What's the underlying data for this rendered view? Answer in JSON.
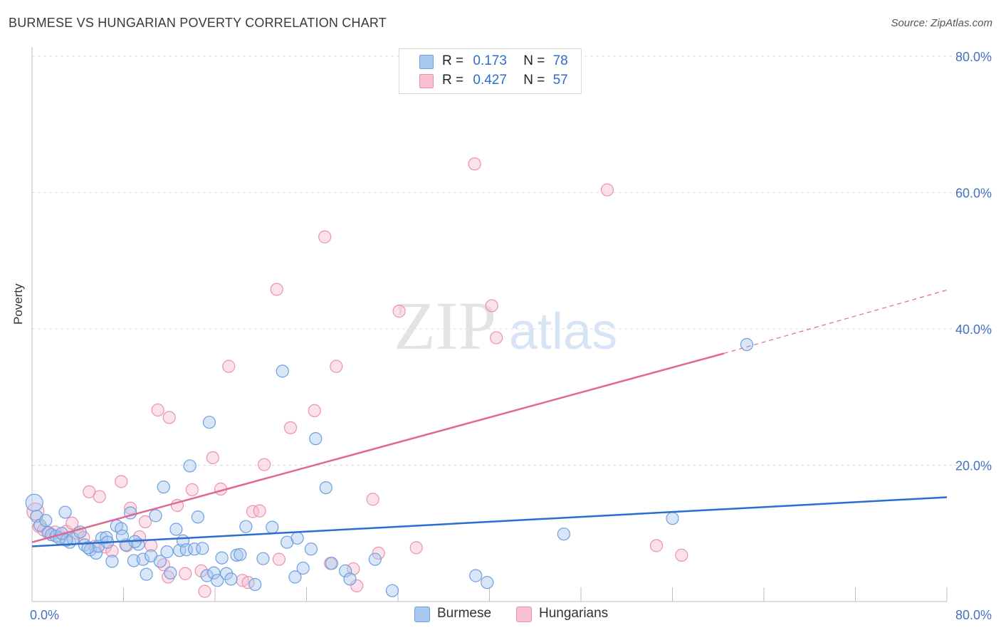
{
  "title": "BURMESE VS HUNGARIAN POVERTY CORRELATION CHART",
  "source": "Source: ZipAtlas.com",
  "watermark": {
    "zip": "ZIP",
    "atlas": "atlas"
  },
  "legend": {
    "rows": [
      {
        "r_label": "R =",
        "r_value": "0.173",
        "n_label": "N =",
        "n_value": "78"
      },
      {
        "r_label": "R =",
        "r_value": "0.427",
        "n_label": "N =",
        "n_value": "57"
      }
    ]
  },
  "bottom_legend": {
    "burmese": "Burmese",
    "hungarians": "Hungarians"
  },
  "colors": {
    "burmese_fill": "#a9c8f0",
    "burmese_stroke": "#6d9fe0",
    "burmese_line": "#2a6fcf",
    "hungarians_fill": "#f7bfd0",
    "hungarians_stroke": "#ec91ad",
    "hungarians_line": "#e0678f",
    "axis_text": "#4472c4"
  },
  "chart_data": {
    "type": "scatter",
    "title": "BURMESE VS HUNGARIAN POVERTY CORRELATION CHART",
    "xlabel": "",
    "ylabel": "Poverty",
    "xlim": [
      0,
      80
    ],
    "ylim": [
      0,
      80
    ],
    "x_tick_labels": [
      "0.0%",
      "80.0%"
    ],
    "y_tick_labels": [
      "20.0%",
      "40.0%",
      "60.0%",
      "80.0%"
    ],
    "y_ticks": [
      20,
      40,
      60,
      80
    ],
    "series": [
      {
        "name": "Burmese",
        "r": 0.173,
        "n": 78,
        "trend": {
          "x0": 0,
          "y0": 8.1,
          "x1": 80,
          "y1": 15.3
        },
        "points": [
          [
            0.2,
            14.5
          ],
          [
            0.4,
            12.5
          ],
          [
            0.7,
            11.2
          ],
          [
            1.2,
            11.9
          ],
          [
            1.4,
            10.1
          ],
          [
            1.7,
            9.8
          ],
          [
            2.1,
            9.6
          ],
          [
            2.4,
            9.3
          ],
          [
            2.9,
            13.1
          ],
          [
            3.3,
            8.7
          ],
          [
            3.6,
            9.2
          ],
          [
            4.2,
            10.2
          ],
          [
            4.6,
            8.3
          ],
          [
            5.1,
            7.6
          ],
          [
            5.6,
            7.1
          ],
          [
            6.1,
            9.3
          ],
          [
            6.5,
            9.4
          ],
          [
            7.0,
            5.9
          ],
          [
            7.4,
            11.1
          ],
          [
            7.8,
            10.7
          ],
          [
            8.2,
            8.3
          ],
          [
            8.6,
            13.0
          ],
          [
            8.9,
            6.0
          ],
          [
            9.3,
            8.4
          ],
          [
            9.7,
            6.2
          ],
          [
            10.0,
            4.0
          ],
          [
            10.4,
            6.7
          ],
          [
            10.8,
            12.6
          ],
          [
            11.2,
            5.9
          ],
          [
            11.5,
            16.8
          ],
          [
            11.8,
            7.3
          ],
          [
            12.1,
            4.2
          ],
          [
            12.6,
            10.6
          ],
          [
            12.9,
            7.5
          ],
          [
            13.2,
            8.9
          ],
          [
            13.5,
            7.6
          ],
          [
            13.8,
            19.9
          ],
          [
            14.2,
            7.7
          ],
          [
            14.5,
            12.4
          ],
          [
            14.9,
            7.8
          ],
          [
            15.3,
            3.8
          ],
          [
            15.5,
            26.3
          ],
          [
            15.9,
            4.2
          ],
          [
            16.2,
            3.1
          ],
          [
            16.6,
            6.4
          ],
          [
            17.0,
            4.1
          ],
          [
            17.4,
            3.3
          ],
          [
            17.9,
            6.8
          ],
          [
            18.2,
            6.9
          ],
          [
            18.7,
            11.0
          ],
          [
            19.5,
            2.5
          ],
          [
            20.2,
            6.3
          ],
          [
            21.0,
            10.9
          ],
          [
            21.9,
            33.8
          ],
          [
            22.3,
            8.7
          ],
          [
            23.0,
            3.6
          ],
          [
            23.2,
            9.3
          ],
          [
            23.7,
            4.9
          ],
          [
            24.4,
            7.7
          ],
          [
            24.8,
            23.9
          ],
          [
            25.7,
            16.7
          ],
          [
            26.2,
            5.6
          ],
          [
            27.4,
            4.5
          ],
          [
            27.8,
            3.3
          ],
          [
            30.0,
            6.2
          ],
          [
            31.5,
            1.6
          ],
          [
            38.8,
            3.8
          ],
          [
            39.8,
            2.8
          ],
          [
            46.5,
            9.9
          ],
          [
            56.0,
            12.2
          ],
          [
            62.5,
            37.7
          ],
          [
            3.0,
            9.0
          ],
          [
            5.8,
            8.1
          ],
          [
            7.9,
            9.6
          ],
          [
            9.0,
            8.8
          ],
          [
            2.6,
            10.0
          ],
          [
            4.9,
            7.9
          ],
          [
            6.6,
            8.7
          ]
        ]
      },
      {
        "name": "Hungarians",
        "r": 0.427,
        "n": 57,
        "trend": {
          "x0": 0,
          "y0": 8.7,
          "x1": 60.5,
          "y1": 36.4,
          "dash_x1": 80,
          "dash_y1": 45.7
        },
        "points": [
          [
            0.3,
            13.2
          ],
          [
            0.6,
            11.0
          ],
          [
            1.0,
            10.5
          ],
          [
            1.5,
            10.1
          ],
          [
            2.0,
            10.2
          ],
          [
            2.5,
            9.5
          ],
          [
            3.0,
            10.3
          ],
          [
            3.5,
            11.5
          ],
          [
            4.0,
            10.0
          ],
          [
            4.5,
            9.4
          ],
          [
            5.0,
            16.1
          ],
          [
            5.5,
            8.1
          ],
          [
            5.9,
            15.4
          ],
          [
            6.4,
            8.0
          ],
          [
            7.0,
            7.4
          ],
          [
            7.8,
            17.6
          ],
          [
            8.6,
            13.7
          ],
          [
            8.3,
            8.2
          ],
          [
            9.4,
            9.5
          ],
          [
            9.9,
            11.7
          ],
          [
            10.4,
            8.2
          ],
          [
            11.0,
            28.1
          ],
          [
            11.5,
            5.4
          ],
          [
            11.9,
            3.6
          ],
          [
            12.0,
            27.0
          ],
          [
            12.7,
            14.1
          ],
          [
            13.4,
            4.1
          ],
          [
            14.0,
            16.4
          ],
          [
            14.8,
            4.5
          ],
          [
            15.1,
            1.5
          ],
          [
            15.8,
            21.1
          ],
          [
            16.5,
            16.5
          ],
          [
            17.2,
            34.5
          ],
          [
            18.4,
            3.1
          ],
          [
            18.9,
            2.8
          ],
          [
            19.3,
            13.2
          ],
          [
            19.9,
            13.3
          ],
          [
            20.3,
            20.1
          ],
          [
            21.4,
            45.8
          ],
          [
            21.6,
            6.2
          ],
          [
            22.6,
            25.5
          ],
          [
            24.7,
            28.0
          ],
          [
            25.6,
            53.5
          ],
          [
            26.1,
            5.6
          ],
          [
            26.6,
            34.5
          ],
          [
            28.1,
            4.8
          ],
          [
            28.4,
            2.3
          ],
          [
            29.8,
            15.0
          ],
          [
            30.3,
            7.1
          ],
          [
            32.1,
            42.6
          ],
          [
            33.6,
            7.9
          ],
          [
            38.7,
            64.2
          ],
          [
            40.2,
            43.4
          ],
          [
            40.6,
            38.7
          ],
          [
            50.3,
            60.4
          ],
          [
            54.6,
            8.2
          ],
          [
            56.8,
            6.8
          ]
        ]
      }
    ]
  }
}
